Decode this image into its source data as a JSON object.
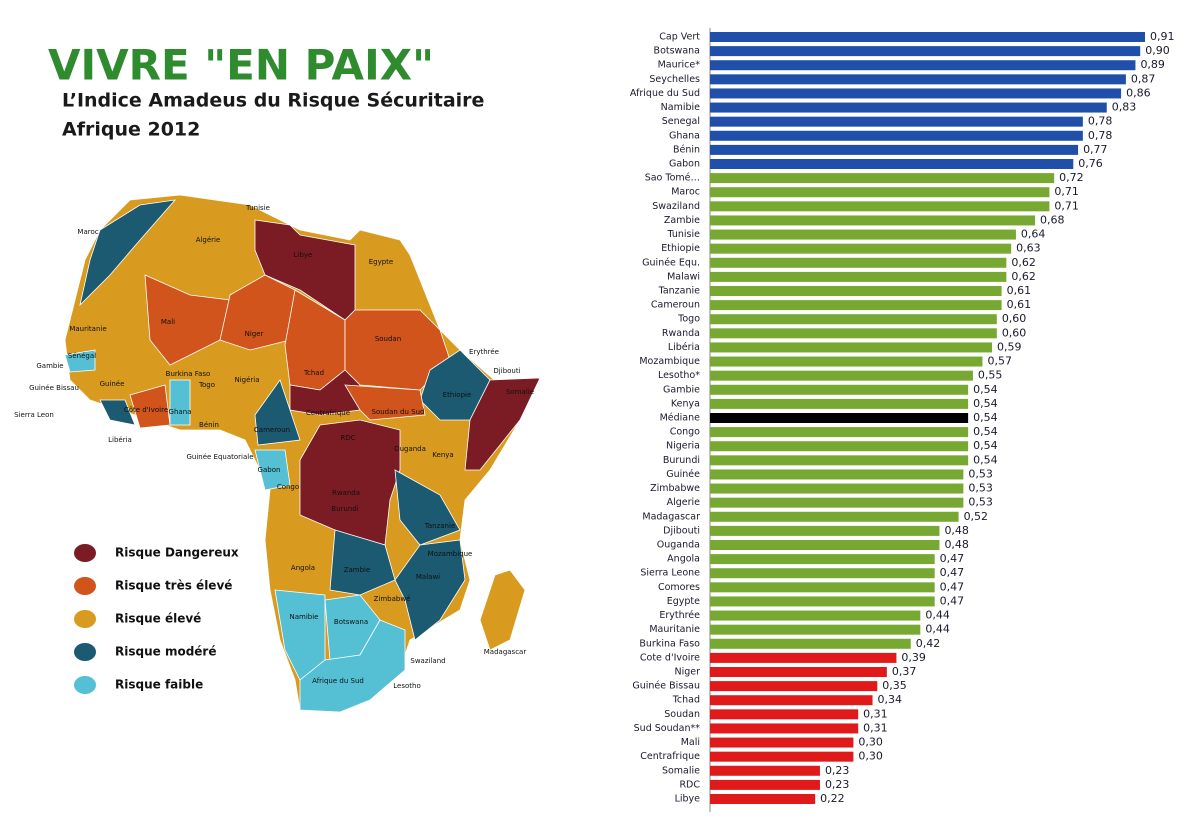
{
  "header": {
    "title": "VIVRE \"EN PAIX\"",
    "subtitle": "L’Indice Amadeus du Risque Sécuritaire",
    "year_line": "Afrique 2012"
  },
  "legend": [
    {
      "label": "Risque Dangereux",
      "color": "#7b1c24"
    },
    {
      "label": "Risque très élevé",
      "color": "#d0541b"
    },
    {
      "label": "Risque  élevé",
      "color": "#d89a1f"
    },
    {
      "label": "Risque  modéré",
      "color": "#1b5a70"
    },
    {
      "label": "Risque  faible",
      "color": "#55bfd3"
    }
  ],
  "map": {
    "labels": [
      "Tunisie",
      "Maroc",
      "Algérie",
      "Libye",
      "Egypte",
      "Mauritanie",
      "Mali",
      "Niger",
      "Tchad",
      "Soudan",
      "Erythrée",
      "Djibouti",
      "Sénégal",
      "Gambie",
      "Guinée Bissau",
      "Guinée",
      "Burkina Faso",
      "Togo",
      "Nigéria",
      "Ethiopie",
      "Somalie",
      "Sierra Leon",
      "Côte d'Ivoire",
      "Ghana",
      "Bénin",
      "Libéria",
      "Centrafrique",
      "Soudan du Sud",
      "Cameroun",
      "Guinée Equatoriale",
      "Gabon",
      "Congo",
      "RDC",
      "Ouganda",
      "Kenya",
      "Rwanda",
      "Burundi",
      "Tanzanie",
      "Mozambique",
      "Angola",
      "Zambie",
      "Malawi",
      "Zimbabwé",
      "Namibie",
      "Botswana",
      "Madagascar",
      "Swaziland",
      "Afrique du Sud",
      "Lesotho"
    ]
  },
  "chart_data": {
    "type": "bar",
    "categories": [
      "Cap Vert",
      "Botswana",
      "Maurice*",
      "Seychelles",
      "Afrique du Sud",
      "Namibie",
      "Senegal",
      "Ghana",
      "Bénin",
      "Gabon",
      "Sao Tomé…",
      "Maroc",
      "Swaziland",
      "Zambie",
      "Tunisie",
      "Ethiopie",
      "Guinée Equ.",
      "Malawi",
      "Tanzanie",
      "Cameroun",
      "Togo",
      "Rwanda",
      "Libéria",
      "Mozambique",
      "Lesotho*",
      "Gambie",
      "Kenya",
      "Médiane",
      "Congo",
      "Nigeria",
      "Burundi",
      "Guinée",
      "Zimbabwe",
      "Algerie",
      "Madagascar",
      "Djibouti",
      "Ouganda",
      "Angola",
      "Sierra Leone",
      "Comores",
      "Egypte",
      "Erythrée",
      "Mauritanie",
      "Burkina Faso",
      "Cote d'Ivoire",
      "Niger",
      "Guinée Bissau",
      "Tchad",
      "Soudan",
      "Sud Soudan**",
      "Mali",
      "Centrafrique",
      "Somalie",
      "RDC",
      "Libye"
    ],
    "values": [
      0.91,
      0.9,
      0.89,
      0.87,
      0.86,
      0.83,
      0.78,
      0.78,
      0.77,
      0.76,
      0.72,
      0.71,
      0.71,
      0.68,
      0.64,
      0.63,
      0.62,
      0.62,
      0.61,
      0.61,
      0.6,
      0.6,
      0.59,
      0.57,
      0.55,
      0.54,
      0.54,
      0.54,
      0.54,
      0.54,
      0.54,
      0.53,
      0.53,
      0.53,
      0.52,
      0.48,
      0.48,
      0.47,
      0.47,
      0.47,
      0.47,
      0.44,
      0.44,
      0.42,
      0.39,
      0.37,
      0.35,
      0.34,
      0.31,
      0.31,
      0.3,
      0.3,
      0.23,
      0.23,
      0.22
    ],
    "value_labels": [
      "0,91",
      "0,90",
      "0,89",
      "0,87",
      "0,86",
      "0,83",
      "0,78",
      "0,78",
      "0,77",
      "0,76",
      "0,72",
      "0,71",
      "0,71",
      "0,68",
      "0,64",
      "0,63",
      "0,62",
      "0,62",
      "0,61",
      "0,61",
      "0,60",
      "0,60",
      "0,59",
      "0,57",
      "0,55",
      "0,54",
      "0,54",
      "0,54",
      "0,54",
      "0,54",
      "0,54",
      "0,53",
      "0,53",
      "0,53",
      "0,52",
      "0,48",
      "0,48",
      "0,47",
      "0,47",
      "0,47",
      "0,47",
      "0,44",
      "0,44",
      "0,42",
      "0,39",
      "0,37",
      "0,35",
      "0,34",
      "0,31",
      "0,31",
      "0,30",
      "0,30",
      "0,23",
      "0,23",
      "0,22"
    ],
    "colors": [
      "#1f4fa8",
      "#1f4fa8",
      "#1f4fa8",
      "#1f4fa8",
      "#1f4fa8",
      "#1f4fa8",
      "#1f4fa8",
      "#1f4fa8",
      "#1f4fa8",
      "#1f4fa8",
      "#76a832",
      "#76a832",
      "#76a832",
      "#76a832",
      "#76a832",
      "#76a832",
      "#76a832",
      "#76a832",
      "#76a832",
      "#76a832",
      "#76a832",
      "#76a832",
      "#76a832",
      "#76a832",
      "#76a832",
      "#76a832",
      "#76a832",
      "#000000",
      "#76a832",
      "#76a832",
      "#76a832",
      "#76a832",
      "#76a832",
      "#76a832",
      "#76a832",
      "#76a832",
      "#76a832",
      "#76a832",
      "#76a832",
      "#76a832",
      "#76a832",
      "#76a832",
      "#76a832",
      "#76a832",
      "#e01a1a",
      "#e01a1a",
      "#e01a1a",
      "#e01a1a",
      "#e01a1a",
      "#e01a1a",
      "#e01a1a",
      "#e01a1a",
      "#e01a1a",
      "#e01a1a",
      "#e01a1a"
    ]
  }
}
